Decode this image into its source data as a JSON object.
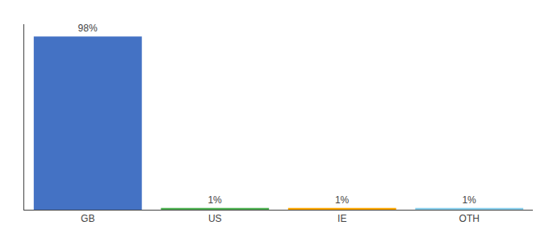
{
  "chart_data": {
    "type": "bar",
    "categories": [
      "GB",
      "US",
      "IE",
      "OTH"
    ],
    "values": [
      98,
      1,
      1,
      1
    ],
    "value_labels": [
      "98%",
      "1%",
      "1%",
      "1%"
    ],
    "colors": [
      "#4472c4",
      "#4caf50",
      "#ffa500",
      "#87ceeb"
    ],
    "data_labels": true,
    "ylim": [
      0,
      105
    ],
    "tick_labels": "x",
    "grid": false
  }
}
